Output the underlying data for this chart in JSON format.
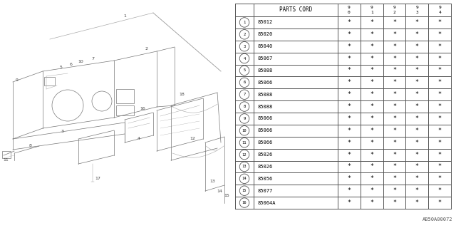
{
  "title": "PARTS CORD",
  "col_headers": [
    "9\n0",
    "9\n1",
    "9\n2",
    "9\n3",
    "9\n4"
  ],
  "rows": [
    {
      "num": "1",
      "code": "85012"
    },
    {
      "num": "2",
      "code": "85020"
    },
    {
      "num": "3",
      "code": "85040"
    },
    {
      "num": "4",
      "code": "85067"
    },
    {
      "num": "5",
      "code": "85088"
    },
    {
      "num": "6",
      "code": "85066"
    },
    {
      "num": "7",
      "code": "85088"
    },
    {
      "num": "8",
      "code": "85088"
    },
    {
      "num": "9",
      "code": "85066"
    },
    {
      "num": "10",
      "code": "85066"
    },
    {
      "num": "11",
      "code": "85066"
    },
    {
      "num": "12",
      "code": "85026"
    },
    {
      "num": "13",
      "code": "85026"
    },
    {
      "num": "14",
      "code": "85056"
    },
    {
      "num": "15",
      "code": "85077"
    },
    {
      "num": "16",
      "code": "85064A"
    }
  ],
  "star_symbol": "*",
  "bg_color": "#ffffff",
  "line_color": "#555555",
  "text_color": "#000000",
  "footer_text": "AB50A00072",
  "diag_line_color": "#aaaaaa",
  "diag_dark_color": "#777777"
}
